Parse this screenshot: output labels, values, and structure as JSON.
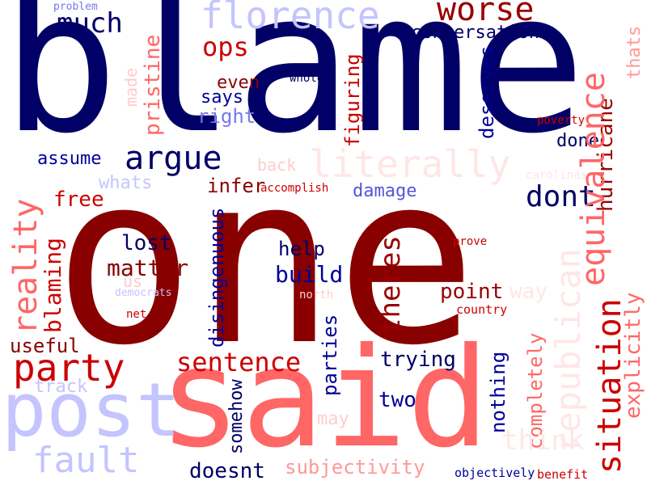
{
  "words": [
    {
      "text": "blame",
      "color": "#000066",
      "vertical": false
    },
    {
      "text": "one",
      "color": "#880000",
      "vertical": false
    },
    {
      "text": "said",
      "color": "#ff6666",
      "vertical": false
    },
    {
      "text": "post",
      "color": "#c4c4ff",
      "vertical": false
    },
    {
      "text": "florence",
      "color": "#c4c4ff",
      "vertical": false
    },
    {
      "text": "worse",
      "color": "#990000",
      "vertical": false
    },
    {
      "text": "much",
      "color": "#000066",
      "vertical": false
    },
    {
      "text": "conversation",
      "color": "#000066",
      "vertical": false
    },
    {
      "text": "ops",
      "color": "#cc0000",
      "vertical": false
    },
    {
      "text": "problem",
      "color": "#7777ee",
      "vertical": false
    },
    {
      "text": "made",
      "color": "#ffcccc",
      "vertical": true
    },
    {
      "text": "pristine",
      "color": "#ff6666",
      "vertical": true
    },
    {
      "text": "even",
      "color": "#880000",
      "vertical": false
    },
    {
      "text": "says",
      "color": "#000099",
      "vertical": false
    },
    {
      "text": "right",
      "color": "#7777ee",
      "vertical": false
    },
    {
      "text": "whole",
      "color": "#000066",
      "vertical": false
    },
    {
      "text": "figuring",
      "color": "#cc0000",
      "vertical": true
    },
    {
      "text": "deserves",
      "color": "#000099",
      "vertical": true
    },
    {
      "text": "poverty",
      "color": "#cc0000",
      "vertical": false
    },
    {
      "text": "thats",
      "color": "#ff9999",
      "vertical": true
    },
    {
      "text": "hurricane",
      "color": "#990000",
      "vertical": true
    },
    {
      "text": "argue",
      "color": "#000066",
      "vertical": false
    },
    {
      "text": "literally",
      "color": "#ffe6e6",
      "vertical": false
    },
    {
      "text": "assume",
      "color": "#000099",
      "vertical": false
    },
    {
      "text": "done",
      "color": "#000066",
      "vertical": false
    },
    {
      "text": "whats",
      "color": "#c4c4ff",
      "vertical": false
    },
    {
      "text": "back",
      "color": "#ffcccc",
      "vertical": false
    },
    {
      "text": "infer",
      "color": "#880000",
      "vertical": false
    },
    {
      "text": "accomplish",
      "color": "#cc0000",
      "vertical": false
    },
    {
      "text": "damage",
      "color": "#5555dd",
      "vertical": false
    },
    {
      "text": "carolinas",
      "color": "#ffe6e6",
      "vertical": false
    },
    {
      "text": "dont",
      "color": "#000066",
      "vertical": false
    },
    {
      "text": "republican",
      "color": "#ffe6e6",
      "vertical": true
    },
    {
      "text": "equivalence",
      "color": "#ff6666",
      "vertical": true
    },
    {
      "text": "situation",
      "color": "#cc0000",
      "vertical": true
    },
    {
      "text": "explicitly",
      "color": "#ff6666",
      "vertical": true
    },
    {
      "text": "reality",
      "color": "#ff6666",
      "vertical": true
    },
    {
      "text": "free",
      "color": "#cc0000",
      "vertical": false
    },
    {
      "text": "blaming",
      "color": "#cc0000",
      "vertical": true
    },
    {
      "text": "lost",
      "color": "#000066",
      "vertical": false
    },
    {
      "text": "matter",
      "color": "#880000",
      "vertical": false
    },
    {
      "text": "us",
      "color": "#ffcccc",
      "vertical": false
    },
    {
      "text": "democrats",
      "color": "#c4c4ff",
      "vertical": false
    },
    {
      "text": "net",
      "color": "#cc0000",
      "vertical": false
    },
    {
      "text": "help",
      "color": "#000066",
      "vertical": false
    },
    {
      "text": "build",
      "color": "#000099",
      "vertical": false
    },
    {
      "text": "north",
      "color": "#ffcccc",
      "vertical": false
    },
    {
      "text": "prove",
      "color": "#cc0000",
      "vertical": false
    },
    {
      "text": "point",
      "color": "#990000",
      "vertical": false
    },
    {
      "text": "country",
      "color": "#cc0000",
      "vertical": false
    },
    {
      "text": "way",
      "color": "#ffe6e6",
      "vertical": false
    },
    {
      "text": "disingenuous",
      "color": "#000099",
      "vertical": true
    },
    {
      "text": "theres",
      "color": "#990000",
      "vertical": true
    },
    {
      "text": "useful",
      "color": "#880000",
      "vertical": false
    },
    {
      "text": "party",
      "color": "#cc0000",
      "vertical": false
    },
    {
      "text": "sentence",
      "color": "#cc0000",
      "vertical": false
    },
    {
      "text": "trying",
      "color": "#000066",
      "vertical": false
    },
    {
      "text": "track",
      "color": "#c4c4ff",
      "vertical": false
    },
    {
      "text": "parties",
      "color": "#000099",
      "vertical": true
    },
    {
      "text": "somehow",
      "color": "#000066",
      "vertical": true
    },
    {
      "text": "two",
      "color": "#000099",
      "vertical": false
    },
    {
      "text": "nothing",
      "color": "#000099",
      "vertical": true
    },
    {
      "text": "completely",
      "color": "#ff6666",
      "vertical": true
    },
    {
      "text": "think",
      "color": "#ffe6e6",
      "vertical": false
    },
    {
      "text": "may",
      "color": "#ffcccc",
      "vertical": false
    },
    {
      "text": "fault",
      "color": "#c4c4ff",
      "vertical": false
    },
    {
      "text": "subjectivity",
      "color": "#ff9999",
      "vertical": false
    },
    {
      "text": "doesnt",
      "color": "#000066",
      "vertical": false
    },
    {
      "text": "objectively",
      "color": "#000099",
      "vertical": false
    },
    {
      "text": "benefit",
      "color": "#cc0000",
      "vertical": false
    }
  ]
}
